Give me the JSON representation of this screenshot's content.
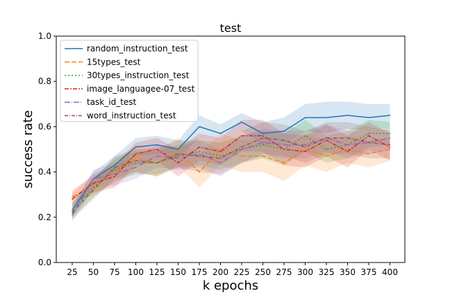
{
  "chart_data": {
    "type": "line",
    "title": "test",
    "xlabel": "k epochs",
    "ylabel": "success rate",
    "x": [
      25,
      50,
      75,
      100,
      125,
      150,
      175,
      200,
      225,
      250,
      275,
      300,
      325,
      350,
      375,
      400
    ],
    "x_ticks": [
      "25",
      "50",
      "75",
      "100",
      "125",
      "150",
      "175",
      "200",
      "225",
      "250",
      "275",
      "300",
      "325",
      "350",
      "375",
      "400"
    ],
    "y_ticks": [
      "0.0",
      "0.2",
      "0.4",
      "0.6",
      "0.8",
      "1.0"
    ],
    "ylim": [
      0,
      1
    ],
    "grid": false,
    "legend_position": "upper-left",
    "series": [
      {
        "name": "random_instruction_test",
        "color": "#1f77b4",
        "dash": "",
        "values": [
          0.23,
          0.37,
          0.43,
          0.51,
          0.52,
          0.5,
          0.6,
          0.57,
          0.62,
          0.57,
          0.58,
          0.64,
          0.64,
          0.65,
          0.64,
          0.65
        ],
        "band": [
          0.03,
          0.03,
          0.04,
          0.04,
          0.04,
          0.04,
          0.05,
          0.04,
          0.04,
          0.05,
          0.06,
          0.06,
          0.07,
          0.06,
          0.06,
          0.05
        ]
      },
      {
        "name": "15types_test",
        "color": "#ff7f0e",
        "dash": "7,3",
        "values": [
          0.29,
          0.34,
          0.4,
          0.46,
          0.44,
          0.49,
          0.4,
          0.5,
          0.47,
          0.47,
          0.44,
          0.5,
          0.47,
          0.5,
          0.48,
          0.5
        ],
        "band": [
          0.03,
          0.04,
          0.05,
          0.06,
          0.06,
          0.06,
          0.07,
          0.07,
          0.07,
          0.07,
          0.08,
          0.07,
          0.07,
          0.06,
          0.06,
          0.05
        ]
      },
      {
        "name": "30types_instruction_test",
        "color": "#2ca02c",
        "dash": "2,3",
        "values": [
          0.23,
          0.33,
          0.41,
          0.44,
          0.44,
          0.47,
          0.49,
          0.47,
          0.5,
          0.52,
          0.5,
          0.56,
          0.5,
          0.52,
          0.57,
          0.57
        ],
        "band": [
          0.03,
          0.04,
          0.05,
          0.05,
          0.05,
          0.05,
          0.06,
          0.06,
          0.06,
          0.06,
          0.07,
          0.07,
          0.06,
          0.06,
          0.06,
          0.05
        ]
      },
      {
        "name": "image_languagee-07_test",
        "color": "#d62728",
        "dash": "6,2,2,2",
        "values": [
          0.28,
          0.35,
          0.38,
          0.48,
          0.5,
          0.44,
          0.51,
          0.49,
          0.56,
          0.56,
          0.5,
          0.49,
          0.54,
          0.49,
          0.56,
          0.51
        ],
        "band": [
          0.03,
          0.04,
          0.05,
          0.05,
          0.05,
          0.06,
          0.06,
          0.06,
          0.07,
          0.07,
          0.07,
          0.07,
          0.07,
          0.07,
          0.06,
          0.06
        ]
      },
      {
        "name": "task_id_test",
        "color": "#9467bd",
        "dash": "8,2,1,2",
        "values": [
          0.21,
          0.37,
          0.39,
          0.42,
          0.47,
          0.46,
          0.48,
          0.44,
          0.5,
          0.53,
          0.52,
          0.52,
          0.55,
          0.52,
          0.53,
          0.55
        ],
        "band": [
          0.03,
          0.04,
          0.05,
          0.05,
          0.05,
          0.05,
          0.06,
          0.06,
          0.06,
          0.06,
          0.06,
          0.06,
          0.06,
          0.06,
          0.05,
          0.05
        ]
      },
      {
        "name": "word_instruction_test",
        "color": "#8c564b",
        "dash": "5,2,1,2",
        "values": [
          0.22,
          0.32,
          0.42,
          0.45,
          0.44,
          0.48,
          0.47,
          0.46,
          0.51,
          0.55,
          0.54,
          0.51,
          0.55,
          0.55,
          0.53,
          0.52
        ],
        "band": [
          0.03,
          0.04,
          0.05,
          0.05,
          0.06,
          0.06,
          0.07,
          0.07,
          0.07,
          0.07,
          0.07,
          0.07,
          0.07,
          0.07,
          0.07,
          0.06
        ]
      }
    ]
  }
}
